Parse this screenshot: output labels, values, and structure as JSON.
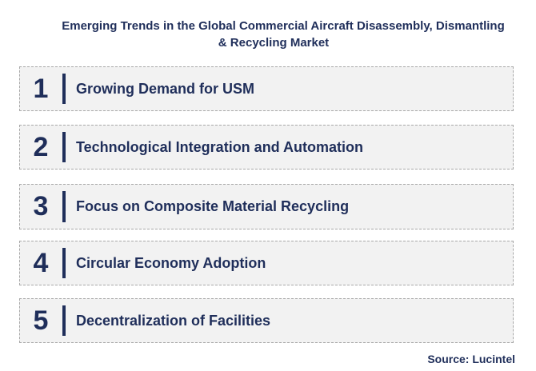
{
  "title": {
    "line1": "Emerging Trends in the Global Commercial Aircraft Disassembly, Dismantling",
    "line2": "& Recycling Market"
  },
  "trends": [
    {
      "number": "1",
      "label": "Growing Demand for USM"
    },
    {
      "number": "2",
      "label": "Technological Integration and Automation"
    },
    {
      "number": "3",
      "label": "Focus on Composite Material Recycling"
    },
    {
      "number": "4",
      "label": "Circular Economy Adoption"
    },
    {
      "number": "5",
      "label": "Decentralization of Facilities"
    }
  ],
  "source": "Source: Lucintel",
  "colors": {
    "text": "#1f2e5a",
    "box_fill": "#f2f2f2",
    "box_border": "#a8a8a8"
  }
}
